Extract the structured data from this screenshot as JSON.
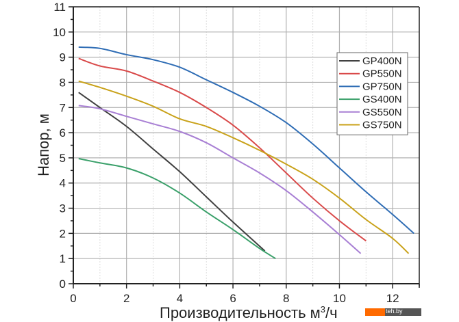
{
  "chart_data": {
    "type": "line",
    "title": "",
    "xlabel": "Производительность м",
    "xlabel_sup": "3",
    "xlabel_suffix": "/ч",
    "ylabel": "Напор, м",
    "xlim": [
      0,
      13
    ],
    "ylim": [
      0,
      11
    ],
    "x_ticks": [
      0,
      2,
      4,
      6,
      8,
      10,
      12
    ],
    "y_ticks": [
      0,
      1,
      2,
      3,
      4,
      5,
      6,
      7,
      8,
      9,
      10,
      11
    ],
    "grid": true,
    "legend_position": "top-right",
    "series": [
      {
        "name": "GP400N",
        "color": "#404040",
        "x": [
          0.2,
          1,
          2,
          3,
          4,
          5,
          6,
          7.2
        ],
        "y": [
          7.6,
          7.0,
          6.25,
          5.35,
          4.45,
          3.45,
          2.45,
          1.3
        ]
      },
      {
        "name": "GP550N",
        "color": "#d94a4a",
        "x": [
          0.2,
          1,
          2,
          3,
          4,
          5,
          6,
          7,
          8,
          9,
          10,
          11
        ],
        "y": [
          8.95,
          8.65,
          8.45,
          8.05,
          7.6,
          7.0,
          6.3,
          5.4,
          4.4,
          3.4,
          2.5,
          1.7
        ]
      },
      {
        "name": "GP750N",
        "color": "#2f6db5",
        "x": [
          0.2,
          1,
          2,
          3,
          4,
          5,
          6,
          7,
          8,
          9,
          10,
          11,
          12,
          12.8
        ],
        "y": [
          9.4,
          9.35,
          9.1,
          8.9,
          8.6,
          8.1,
          7.6,
          7.05,
          6.4,
          5.55,
          4.6,
          3.65,
          2.75,
          2.0
        ]
      },
      {
        "name": "GS400N",
        "color": "#3aa06a",
        "x": [
          0.2,
          1,
          2,
          3,
          4,
          5,
          6,
          7,
          7.6
        ],
        "y": [
          4.97,
          4.8,
          4.6,
          4.2,
          3.6,
          2.85,
          2.15,
          1.4,
          1.0
        ]
      },
      {
        "name": "GS550N",
        "color": "#a87fd4",
        "x": [
          0.2,
          1,
          2,
          3,
          4,
          5,
          6,
          7,
          8,
          9,
          10,
          10.8
        ],
        "y": [
          7.08,
          6.95,
          6.65,
          6.35,
          6.05,
          5.6,
          5.0,
          4.4,
          3.7,
          2.85,
          1.95,
          1.2
        ]
      },
      {
        "name": "GS750N",
        "color": "#c9a21a",
        "x": [
          0.2,
          1,
          2,
          3,
          4,
          5,
          6,
          7,
          8,
          9,
          10,
          11,
          12,
          12.6
        ],
        "y": [
          8.05,
          7.8,
          7.45,
          7.05,
          6.55,
          6.25,
          5.8,
          5.3,
          4.75,
          4.15,
          3.4,
          2.55,
          1.8,
          1.2
        ]
      }
    ]
  },
  "watermark": {
    "text": "teh.by"
  }
}
